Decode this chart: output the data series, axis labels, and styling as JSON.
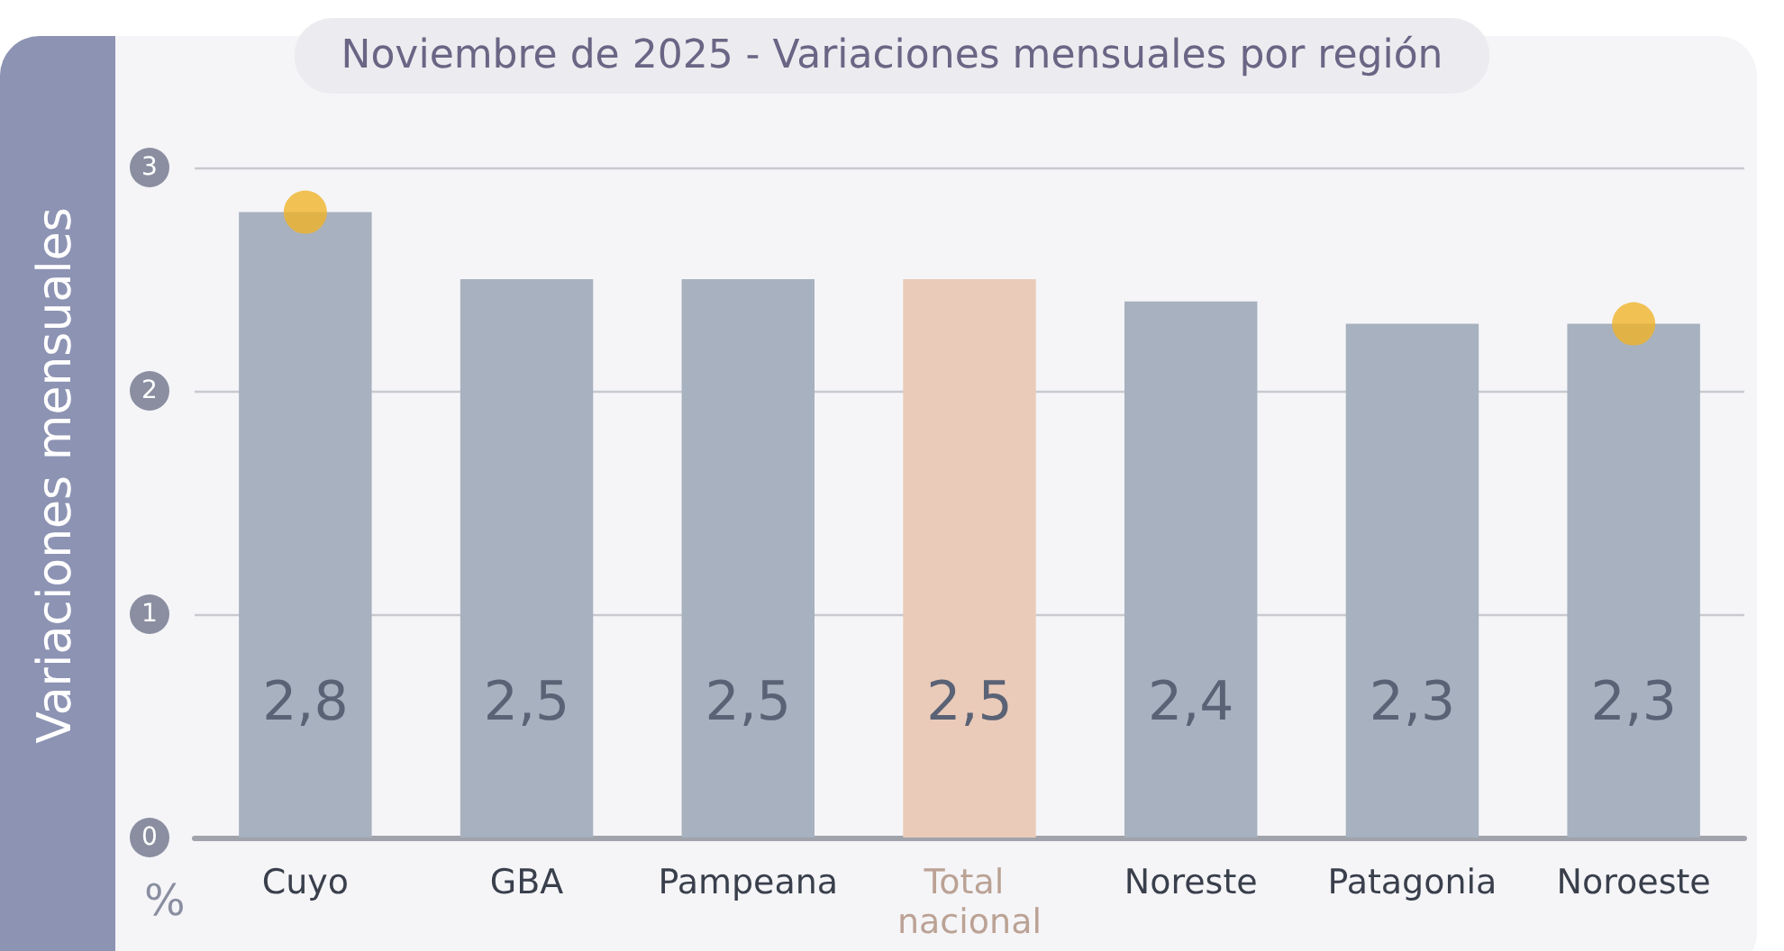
{
  "chart_data": {
    "type": "bar",
    "title": "Noviembre de 2025 - Variaciones mensuales por región",
    "ylabel": "Variaciones mensuales",
    "annotations": [
      "%"
    ],
    "categories": [
      "Cuyo",
      "GBA",
      "Pampeana",
      "Total nacional",
      "Noreste",
      "Patagonia",
      "Noroeste"
    ],
    "series": [
      {
        "values": [
          2.8,
          2.5,
          2.5,
          2.5,
          2.4,
          2.3,
          2.3
        ],
        "colors": [
          "#a7b1bf",
          "#a7b1bf",
          "#a7b1bf",
          "#eacbb9",
          "#a7b1bf",
          "#a7b1bf",
          "#a7b1bf"
        ],
        "value_labels": [
          "2,8",
          "2,5",
          "2,5",
          "2,5",
          "2,4",
          "2,3",
          "2,3"
        ]
      },
      {
        "type": "scatter",
        "color": "#f0b429",
        "x": [
          "Cuyo",
          "Noroeste"
        ],
        "values": [
          2.8,
          2.3
        ]
      }
    ],
    "ylim": [
      0,
      3
    ],
    "yticks": [
      0,
      1,
      2,
      3
    ],
    "grid": "y",
    "marker": "circle"
  }
}
